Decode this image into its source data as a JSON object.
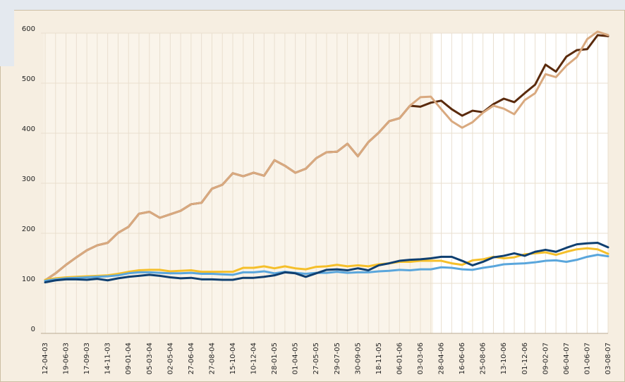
{
  "chart_data": {
    "type": "line",
    "categories": [
      "12-04-03",
      null,
      "19-06-03",
      null,
      "17-09-03",
      null,
      "14-11-03",
      null,
      "09-01-04",
      null,
      "05-03-04",
      null,
      "02-05-04",
      null,
      "27-06-04",
      null,
      "27-08-04",
      null,
      "15-10-04",
      null,
      "10-12-04",
      null,
      "28-01-05",
      null,
      "01-04-05",
      null,
      "27-05-05",
      null,
      "29-07-05",
      null,
      "30-09-05",
      null,
      "18-11-05",
      null,
      "06-01-06",
      null,
      "03-03-06",
      null,
      "28-04-06",
      null,
      "16-06-06",
      null,
      "25-08-06",
      null,
      "13-10-06",
      null,
      "01-12-06",
      null,
      "09-02-07",
      null,
      "06-04-07",
      null,
      "01-06-07",
      null,
      "03-08-07"
    ],
    "series": [
      {
        "color": "#5a2a0c",
        "values": [
          106,
          120,
          137,
          152,
          166,
          176,
          181,
          201,
          213,
          239,
          243,
          231,
          238,
          245,
          258,
          261,
          289,
          297,
          320,
          314,
          321,
          315,
          346,
          335,
          321,
          329,
          350,
          362,
          363,
          379,
          354,
          382,
          401,
          424,
          430,
          455,
          453,
          461,
          465,
          448,
          435,
          445,
          442,
          458,
          469,
          462,
          480,
          497,
          537,
          523,
          553,
          566,
          568,
          596,
          594
        ]
      },
      {
        "color": "#d9a97f",
        "values": [
          106,
          120,
          137,
          152,
          166,
          176,
          181,
          201,
          213,
          239,
          243,
          231,
          238,
          245,
          258,
          261,
          289,
          297,
          320,
          314,
          321,
          315,
          346,
          335,
          321,
          329,
          350,
          362,
          363,
          379,
          354,
          382,
          401,
          424,
          430,
          455,
          472,
          473,
          448,
          424,
          411,
          422,
          441,
          455,
          449,
          438,
          466,
          480,
          518,
          512,
          535,
          552,
          588,
          603,
          596
        ]
      },
      {
        "color": "#f5bf2a",
        "values": [
          107,
          110,
          112,
          113,
          114,
          115,
          116,
          119,
          123,
          126,
          127,
          127,
          124,
          125,
          126,
          123,
          123,
          123,
          123,
          131,
          131,
          134,
          130,
          134,
          130,
          128,
          133,
          134,
          137,
          134,
          136,
          134,
          138,
          140,
          143,
          143,
          145,
          145,
          145,
          140,
          137,
          146,
          148,
          153,
          150,
          152,
          158,
          160,
          162,
          157,
          163,
          168,
          170,
          168,
          159
        ]
      },
      {
        "color": "#5aa6dc",
        "values": [
          105,
          108,
          110,
          111,
          112,
          113,
          114,
          116,
          120,
          122,
          122,
          121,
          120,
          120,
          121,
          119,
          119,
          118,
          117,
          122,
          122,
          124,
          120,
          123,
          121,
          119,
          121,
          121,
          123,
          121,
          122,
          122,
          124,
          125,
          127,
          126,
          128,
          128,
          132,
          131,
          128,
          127,
          131,
          134,
          138,
          139,
          140,
          142,
          145,
          146,
          143,
          147,
          153,
          157,
          154
        ]
      },
      {
        "color": "#0f3f70",
        "values": [
          102,
          106,
          108,
          108,
          107,
          109,
          106,
          110,
          113,
          115,
          117,
          115,
          112,
          110,
          111,
          108,
          108,
          107,
          107,
          111,
          111,
          113,
          116,
          122,
          120,
          113,
          120,
          127,
          128,
          126,
          130,
          126,
          136,
          140,
          145,
          147,
          148,
          150,
          153,
          153,
          145,
          136,
          143,
          152,
          155,
          160,
          155,
          163,
          167,
          163,
          171,
          178,
          180,
          181,
          172
        ]
      }
    ],
    "ylim": [
      0,
      600
    ],
    "yticks": [
      0,
      100,
      200,
      300,
      400,
      500,
      600
    ],
    "grid": true
  }
}
